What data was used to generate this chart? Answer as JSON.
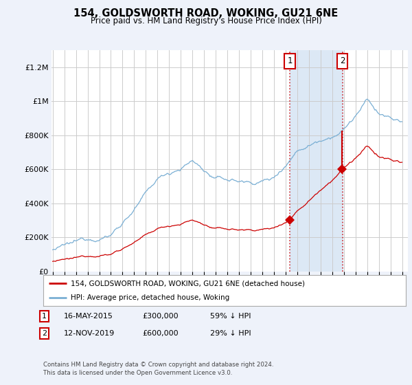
{
  "title": "154, GOLDSWORTH ROAD, WOKING, GU21 6NE",
  "subtitle": "Price paid vs. HM Land Registry's House Price Index (HPI)",
  "ylabel_ticks": [
    "£0",
    "£200K",
    "£400K",
    "£600K",
    "£800K",
    "£1M",
    "£1.2M"
  ],
  "ytick_values": [
    0,
    200000,
    400000,
    600000,
    800000,
    1000000,
    1200000
  ],
  "ylim": [
    0,
    1300000
  ],
  "xlim_start": 1994.9,
  "xlim_end": 2025.5,
  "sale1_date": 2015.37,
  "sale1_price": 300000,
  "sale2_date": 2019.87,
  "sale2_price": 600000,
  "legend_line1_color": "#cc0000",
  "legend_line1_label": "154, GOLDSWORTH ROAD, WOKING, GU21 6NE (detached house)",
  "legend_line2_color": "#7aafd4",
  "legend_line2_label": "HPI: Average price, detached house, Woking",
  "shade_color": "#dce8f5",
  "background_color": "#eef2fa",
  "plot_bg_color": "#ffffff",
  "grid_color": "#cccccc",
  "hpi_line_color": "#7aafd4",
  "sale_line_color": "#cc0000",
  "footer": "Contains HM Land Registry data © Crown copyright and database right 2024.\nThis data is licensed under the Open Government Licence v3.0."
}
